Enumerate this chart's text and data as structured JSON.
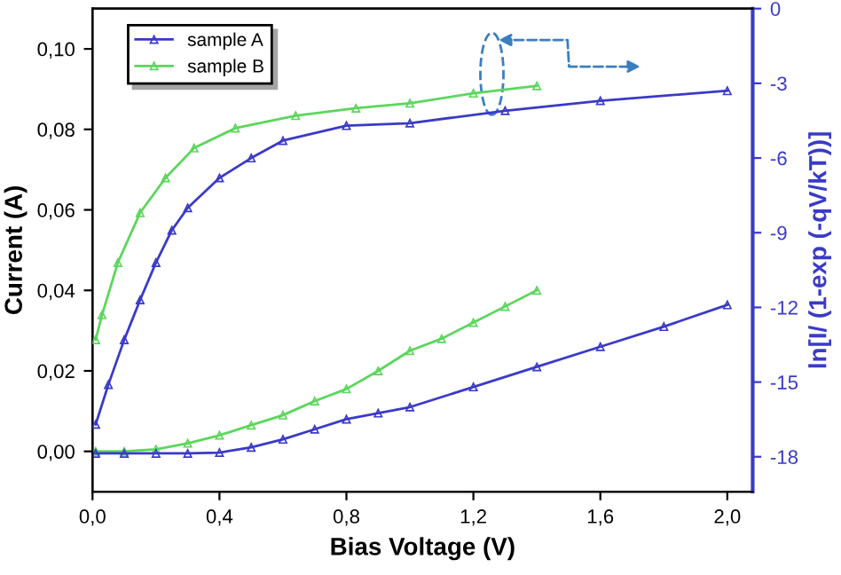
{
  "chart_data": {
    "type": "line",
    "xlabel": "Bias Voltage (V)",
    "ylabel": "Current (A)",
    "y2label": "ln[I/ (1-exp (-qV/kT))]",
    "xlim": [
      0,
      2.08
    ],
    "ylim": [
      -0.01,
      0.11
    ],
    "y2lim": [
      -19.4,
      0
    ],
    "xticks": [
      {
        "value": 0,
        "label": "0,0"
      },
      {
        "value": 0.4,
        "label": "0,4"
      },
      {
        "value": 0.8,
        "label": "0,8"
      },
      {
        "value": 1.2,
        "label": "1,2"
      },
      {
        "value": 1.6,
        "label": "1,6"
      },
      {
        "value": 2.0,
        "label": "2,0"
      }
    ],
    "yticks": [
      {
        "value": 0,
        "label": "0,00"
      },
      {
        "value": 0.02,
        "label": "0,02"
      },
      {
        "value": 0.04,
        "label": "0,04"
      },
      {
        "value": 0.06,
        "label": "0,06"
      },
      {
        "value": 0.08,
        "label": "0,08"
      },
      {
        "value": 0.1,
        "label": "0,10"
      }
    ],
    "y2ticks": [
      0,
      {
        "value": -3,
        "label": "-3"
      },
      {
        "value": -6,
        "label": "-6"
      },
      {
        "value": -9,
        "label": "-9"
      },
      {
        "value": -12,
        "label": "-12"
      },
      {
        "value": -15,
        "label": "-15"
      },
      {
        "value": -18,
        "label": "-18"
      }
    ],
    "legend": "top left",
    "marker": "triangle",
    "grid": false,
    "series": [
      {
        "name": "sample A",
        "color": "#3a3ac8",
        "x": [
          0.01,
          0.1,
          0.2,
          0.3,
          0.4,
          0.5,
          0.6,
          0.7,
          0.8,
          0.9,
          1.0,
          1.2,
          1.4,
          1.6,
          1.8,
          2.0
        ],
        "values": [
          -0.0005,
          -0.0005,
          -0.0005,
          -0.0005,
          -0.0003,
          0.001,
          0.003,
          0.0055,
          0.008,
          0.0095,
          0.011,
          0.016,
          0.021,
          0.026,
          0.031,
          0.0364
        ]
      },
      {
        "name": "sample B",
        "color": "#5cd65c",
        "x": [
          0.01,
          0.1,
          0.2,
          0.3,
          0.4,
          0.5,
          0.6,
          0.7,
          0.8,
          0.9,
          1.0,
          1.1,
          1.2,
          1.3,
          1.4
        ],
        "values": [
          0.0,
          0.0,
          0.0005,
          0.002,
          0.004,
          0.0065,
          0.009,
          0.0125,
          0.0155,
          0.02,
          0.025,
          0.028,
          0.032,
          0.036,
          0.04
        ]
      },
      {
        "color": "#3a3ac8",
        "axis": "y2",
        "x": [
          0.01,
          0.05,
          0.1,
          0.15,
          0.2,
          0.25,
          0.3,
          0.4,
          0.5,
          0.6,
          0.8,
          1.0,
          1.3,
          1.6,
          2.0
        ],
        "values": [
          -16.7,
          -15.1,
          -13.3,
          -11.7,
          -10.2,
          -8.9,
          -8.0,
          -6.8,
          -6.0,
          -5.3,
          -4.7,
          -4.6,
          -4.1,
          -3.7,
          -3.3
        ]
      },
      {
        "color": "#5cd65c",
        "axis": "y2",
        "x": [
          0.01,
          0.03,
          0.08,
          0.15,
          0.23,
          0.32,
          0.45,
          0.64,
          0.83,
          1.0,
          1.2,
          1.4
        ],
        "values": [
          -13.3,
          -12.3,
          -10.2,
          -8.2,
          -6.8,
          -5.6,
          -4.8,
          -4.3,
          -4.0,
          -3.8,
          -3.4,
          -3.1
        ]
      }
    ]
  }
}
